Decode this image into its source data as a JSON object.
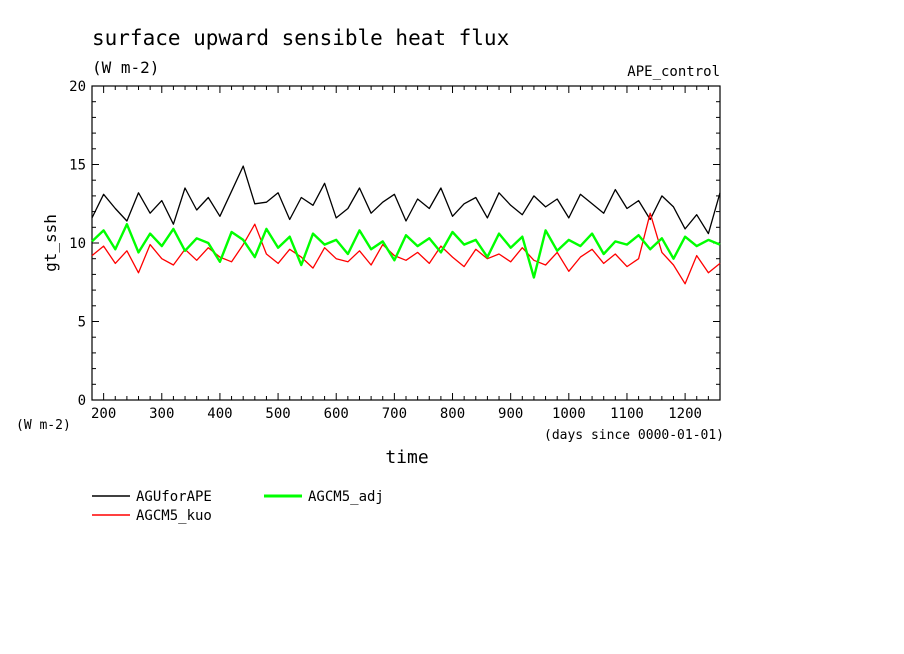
{
  "chart_data": {
    "type": "line",
    "title": "surface upward sensible heat flux",
    "units": "(W m-2)",
    "run_label": "APE_control",
    "xlabel": "time",
    "x_units": "(days since 0000-01-01)",
    "ylabel": "gt_ssh",
    "y_units": "(W m-2)",
    "xlim": [
      180,
      1260
    ],
    "ylim": [
      0,
      20
    ],
    "x_ticks": [
      "200",
      "300",
      "400",
      "500",
      "600",
      "700",
      "800",
      "900",
      "1000",
      "1100",
      "1200"
    ],
    "y_ticks": [
      "0",
      "5",
      "10",
      "15",
      "20"
    ],
    "legend_position": "bottom-left",
    "series": [
      {
        "name": "AGUforAPE",
        "color": "#000000",
        "x": [
          180,
          200,
          220,
          240,
          260,
          280,
          300,
          320,
          340,
          360,
          380,
          400,
          420,
          440,
          460,
          480,
          500,
          520,
          540,
          560,
          580,
          600,
          620,
          640,
          660,
          680,
          700,
          720,
          740,
          760,
          780,
          800,
          820,
          840,
          860,
          880,
          900,
          920,
          940,
          960,
          980,
          1000,
          1020,
          1040,
          1060,
          1080,
          1100,
          1120,
          1140,
          1160,
          1180,
          1200,
          1220,
          1240,
          1260
        ],
        "y": [
          11.6,
          13.1,
          12.2,
          11.4,
          13.2,
          11.9,
          12.7,
          11.2,
          13.5,
          12.1,
          12.9,
          11.7,
          13.3,
          14.9,
          12.5,
          12.6,
          13.2,
          11.5,
          12.9,
          12.4,
          13.8,
          11.6,
          12.2,
          13.5,
          11.9,
          12.6,
          13.1,
          11.4,
          12.8,
          12.2,
          13.5,
          11.7,
          12.5,
          12.9,
          11.6,
          13.2,
          12.4,
          11.8,
          13.0,
          12.3,
          12.8,
          11.6,
          13.1,
          12.5,
          11.9,
          13.4,
          12.2,
          12.7,
          11.5,
          13.0,
          12.3,
          10.9,
          11.8,
          10.6,
          13.2
        ]
      },
      {
        "name": "AGCM5_kuo",
        "color": "#ff0000",
        "x": [
          180,
          200,
          220,
          240,
          260,
          280,
          300,
          320,
          340,
          360,
          380,
          400,
          420,
          440,
          460,
          480,
          500,
          520,
          540,
          560,
          580,
          600,
          620,
          640,
          660,
          680,
          700,
          720,
          740,
          760,
          780,
          800,
          820,
          840,
          860,
          880,
          900,
          920,
          940,
          960,
          980,
          1000,
          1020,
          1040,
          1060,
          1080,
          1100,
          1120,
          1140,
          1160,
          1180,
          1200,
          1220,
          1240,
          1260
        ],
        "y": [
          9.2,
          9.8,
          8.7,
          9.5,
          8.1,
          9.9,
          9.0,
          8.6,
          9.6,
          8.9,
          9.7,
          9.1,
          8.8,
          9.9,
          11.2,
          9.3,
          8.7,
          9.6,
          9.1,
          8.4,
          9.7,
          9.0,
          8.8,
          9.5,
          8.6,
          9.9,
          9.2,
          8.9,
          9.4,
          8.7,
          9.8,
          9.1,
          8.5,
          9.6,
          9.0,
          9.3,
          8.8,
          9.7,
          8.9,
          8.6,
          9.4,
          8.2,
          9.1,
          9.6,
          8.7,
          9.3,
          8.5,
          9.0,
          11.9,
          9.4,
          8.6,
          7.4,
          9.2,
          8.1,
          8.7
        ]
      },
      {
        "name": "AGCM5_adj",
        "color": "#00ff00",
        "x": [
          180,
          200,
          220,
          240,
          260,
          280,
          300,
          320,
          340,
          360,
          380,
          400,
          420,
          440,
          460,
          480,
          500,
          520,
          540,
          560,
          580,
          600,
          620,
          640,
          660,
          680,
          700,
          720,
          740,
          760,
          780,
          800,
          820,
          840,
          860,
          880,
          900,
          920,
          940,
          960,
          980,
          1000,
          1020,
          1040,
          1060,
          1080,
          1100,
          1120,
          1140,
          1160,
          1180,
          1200,
          1220,
          1240,
          1260
        ],
        "y": [
          10.1,
          10.8,
          9.6,
          11.2,
          9.4,
          10.6,
          9.8,
          10.9,
          9.5,
          10.3,
          10.0,
          8.8,
          10.7,
          10.2,
          9.1,
          10.9,
          9.7,
          10.4,
          8.6,
          10.6,
          9.9,
          10.2,
          9.3,
          10.8,
          9.6,
          10.1,
          8.9,
          10.5,
          9.8,
          10.3,
          9.4,
          10.7,
          9.9,
          10.2,
          9.1,
          10.6,
          9.7,
          10.4,
          7.8,
          10.8,
          9.5,
          10.2,
          9.8,
          10.6,
          9.3,
          10.1,
          9.9,
          10.5,
          9.6,
          10.3,
          9.0,
          10.4,
          9.8,
          10.2,
          9.9
        ]
      }
    ]
  }
}
